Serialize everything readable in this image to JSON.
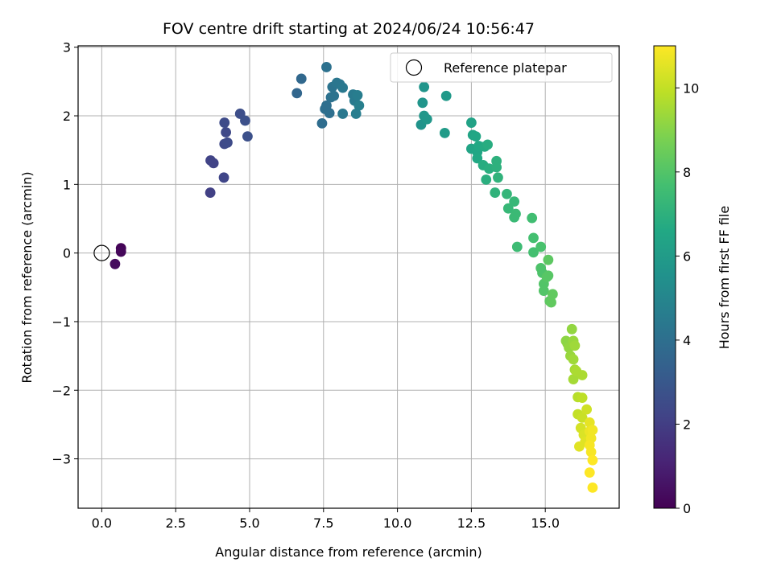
{
  "chart_data": {
    "type": "scatter",
    "title": "FOV centre drift starting at 2024/06/24 10:56:47",
    "xlabel": "Angular distance from reference (arcmin)",
    "ylabel": "Rotation from reference (arcmin)",
    "xlim": [
      -0.8,
      17.5
    ],
    "ylim": [
      -3.72,
      3.02
    ],
    "xticks": [
      "0.0",
      "2.5",
      "5.0",
      "7.5",
      "10.0",
      "12.5",
      "15.0"
    ],
    "xtick_values": [
      0,
      2.5,
      5,
      7.5,
      10,
      12.5,
      15
    ],
    "yticks": [
      "−3",
      "−2",
      "−1",
      "0",
      "1",
      "2",
      "3"
    ],
    "ytick_values": [
      -3,
      -2,
      -1,
      0,
      1,
      2,
      3
    ],
    "grid": true,
    "legend": {
      "position": "top-right",
      "entries": [
        "Reference platepar"
      ]
    },
    "reference_point": {
      "x": 0,
      "y": 0
    },
    "colorbar": {
      "label": "Hours from first FF file",
      "range": [
        0,
        11
      ],
      "ticks": [
        "0",
        "2",
        "4",
        "6",
        "8",
        "10"
      ],
      "tick_values": [
        0,
        2,
        4,
        6,
        8,
        10
      ],
      "colormap": "viridis"
    },
    "points": [
      {
        "x": 0.65,
        "y": 0.07,
        "h": 0.1
      },
      {
        "x": 0.65,
        "y": 0.02,
        "h": 0.2
      },
      {
        "x": 0.45,
        "y": -0.16,
        "h": 0.3
      },
      {
        "x": 3.67,
        "y": 0.88,
        "h": 2.1
      },
      {
        "x": 3.68,
        "y": 1.35,
        "h": 2.2
      },
      {
        "x": 3.78,
        "y": 1.31,
        "h": 2.2
      },
      {
        "x": 4.13,
        "y": 1.1,
        "h": 2.3
      },
      {
        "x": 4.15,
        "y": 1.59,
        "h": 2.4
      },
      {
        "x": 4.2,
        "y": 1.76,
        "h": 2.4
      },
      {
        "x": 4.25,
        "y": 1.61,
        "h": 2.5
      },
      {
        "x": 4.15,
        "y": 1.9,
        "h": 2.5
      },
      {
        "x": 4.68,
        "y": 2.03,
        "h": 2.6
      },
      {
        "x": 4.85,
        "y": 1.93,
        "h": 2.7
      },
      {
        "x": 4.93,
        "y": 1.7,
        "h": 2.7
      },
      {
        "x": 6.6,
        "y": 2.33,
        "h": 3.6
      },
      {
        "x": 6.75,
        "y": 2.54,
        "h": 3.7
      },
      {
        "x": 7.45,
        "y": 1.89,
        "h": 3.9
      },
      {
        "x": 7.55,
        "y": 2.1,
        "h": 4.0
      },
      {
        "x": 7.6,
        "y": 2.15,
        "h": 4.0
      },
      {
        "x": 7.7,
        "y": 2.04,
        "h": 4.0
      },
      {
        "x": 7.6,
        "y": 2.71,
        "h": 4.1
      },
      {
        "x": 7.75,
        "y": 2.27,
        "h": 4.1
      },
      {
        "x": 7.8,
        "y": 2.42,
        "h": 4.2
      },
      {
        "x": 7.85,
        "y": 2.29,
        "h": 4.2
      },
      {
        "x": 7.95,
        "y": 2.48,
        "h": 4.3
      },
      {
        "x": 8.05,
        "y": 2.46,
        "h": 4.3
      },
      {
        "x": 8.15,
        "y": 2.41,
        "h": 4.4
      },
      {
        "x": 8.15,
        "y": 2.03,
        "h": 4.4
      },
      {
        "x": 8.5,
        "y": 2.31,
        "h": 4.5
      },
      {
        "x": 8.55,
        "y": 2.22,
        "h": 4.5
      },
      {
        "x": 8.6,
        "y": 2.03,
        "h": 4.6
      },
      {
        "x": 8.65,
        "y": 2.3,
        "h": 4.6
      },
      {
        "x": 8.7,
        "y": 2.15,
        "h": 4.7
      },
      {
        "x": 10.8,
        "y": 1.87,
        "h": 5.6
      },
      {
        "x": 10.85,
        "y": 2.19,
        "h": 5.7
      },
      {
        "x": 10.9,
        "y": 2.42,
        "h": 5.7
      },
      {
        "x": 10.9,
        "y": 2.0,
        "h": 5.8
      },
      {
        "x": 11.0,
        "y": 1.95,
        "h": 5.8
      },
      {
        "x": 11.65,
        "y": 2.29,
        "h": 5.9
      },
      {
        "x": 11.6,
        "y": 1.75,
        "h": 6.0
      },
      {
        "x": 12.5,
        "y": 1.9,
        "h": 6.3
      },
      {
        "x": 12.5,
        "y": 1.52,
        "h": 6.4
      },
      {
        "x": 12.55,
        "y": 1.72,
        "h": 6.4
      },
      {
        "x": 12.65,
        "y": 1.7,
        "h": 6.5
      },
      {
        "x": 12.7,
        "y": 1.47,
        "h": 6.5
      },
      {
        "x": 12.75,
        "y": 1.56,
        "h": 6.6
      },
      {
        "x": 12.7,
        "y": 1.38,
        "h": 6.6
      },
      {
        "x": 12.95,
        "y": 1.55,
        "h": 6.7
      },
      {
        "x": 12.9,
        "y": 1.28,
        "h": 6.8
      },
      {
        "x": 13.05,
        "y": 1.58,
        "h": 6.8
      },
      {
        "x": 13.0,
        "y": 1.07,
        "h": 6.9
      },
      {
        "x": 13.1,
        "y": 1.23,
        "h": 6.9
      },
      {
        "x": 13.35,
        "y": 1.34,
        "h": 7.0
      },
      {
        "x": 13.35,
        "y": 1.25,
        "h": 7.0
      },
      {
        "x": 13.4,
        "y": 1.1,
        "h": 7.1
      },
      {
        "x": 13.3,
        "y": 0.88,
        "h": 7.1
      },
      {
        "x": 13.7,
        "y": 0.86,
        "h": 7.2
      },
      {
        "x": 13.75,
        "y": 0.65,
        "h": 7.3
      },
      {
        "x": 13.95,
        "y": 0.75,
        "h": 7.3
      },
      {
        "x": 13.95,
        "y": 0.52,
        "h": 7.4
      },
      {
        "x": 14.0,
        "y": 0.57,
        "h": 7.4
      },
      {
        "x": 14.05,
        "y": 0.09,
        "h": 7.5
      },
      {
        "x": 14.55,
        "y": 0.51,
        "h": 7.6
      },
      {
        "x": 14.6,
        "y": 0.22,
        "h": 7.7
      },
      {
        "x": 14.6,
        "y": 0.01,
        "h": 7.7
      },
      {
        "x": 14.85,
        "y": 0.09,
        "h": 7.8
      },
      {
        "x": 14.85,
        "y": -0.22,
        "h": 7.9
      },
      {
        "x": 14.9,
        "y": -0.29,
        "h": 7.9
      },
      {
        "x": 14.95,
        "y": -0.45,
        "h": 8.0
      },
      {
        "x": 14.95,
        "y": -0.55,
        "h": 8.0
      },
      {
        "x": 15.05,
        "y": -0.35,
        "h": 8.1
      },
      {
        "x": 15.1,
        "y": -0.33,
        "h": 8.1
      },
      {
        "x": 15.1,
        "y": -0.1,
        "h": 8.2
      },
      {
        "x": 15.15,
        "y": -0.7,
        "h": 8.2
      },
      {
        "x": 15.2,
        "y": -0.72,
        "h": 8.3
      },
      {
        "x": 15.25,
        "y": -0.6,
        "h": 8.3
      },
      {
        "x": 15.7,
        "y": -1.28,
        "h": 9.1
      },
      {
        "x": 15.75,
        "y": -1.32,
        "h": 9.1
      },
      {
        "x": 15.8,
        "y": -1.38,
        "h": 9.2
      },
      {
        "x": 15.9,
        "y": -1.11,
        "h": 9.2
      },
      {
        "x": 15.85,
        "y": -1.5,
        "h": 9.3
      },
      {
        "x": 15.95,
        "y": -1.28,
        "h": 9.3
      },
      {
        "x": 15.95,
        "y": -1.55,
        "h": 9.4
      },
      {
        "x": 16.0,
        "y": -1.35,
        "h": 9.4
      },
      {
        "x": 16.0,
        "y": -1.7,
        "h": 9.5
      },
      {
        "x": 15.95,
        "y": -1.84,
        "h": 9.5
      },
      {
        "x": 16.25,
        "y": -1.78,
        "h": 9.6
      },
      {
        "x": 16.05,
        "y": -1.72,
        "h": 9.6
      },
      {
        "x": 16.1,
        "y": -2.1,
        "h": 9.8
      },
      {
        "x": 16.25,
        "y": -2.11,
        "h": 9.9
      },
      {
        "x": 16.1,
        "y": -2.35,
        "h": 10.0
      },
      {
        "x": 16.25,
        "y": -2.4,
        "h": 10.1
      },
      {
        "x": 16.4,
        "y": -2.28,
        "h": 10.2
      },
      {
        "x": 16.2,
        "y": -2.55,
        "h": 10.3
      },
      {
        "x": 16.3,
        "y": -2.65,
        "h": 10.4
      },
      {
        "x": 16.35,
        "y": -2.75,
        "h": 10.5
      },
      {
        "x": 16.15,
        "y": -2.82,
        "h": 10.5
      },
      {
        "x": 16.5,
        "y": -2.47,
        "h": 10.6
      },
      {
        "x": 16.5,
        "y": -2.6,
        "h": 10.7
      },
      {
        "x": 16.55,
        "y": -2.7,
        "h": 10.8
      },
      {
        "x": 16.6,
        "y": -2.58,
        "h": 10.8
      },
      {
        "x": 16.5,
        "y": -2.8,
        "h": 10.9
      },
      {
        "x": 16.55,
        "y": -2.9,
        "h": 10.9
      },
      {
        "x": 16.6,
        "y": -3.02,
        "h": 11.0
      },
      {
        "x": 16.5,
        "y": -3.2,
        "h": 11.0
      },
      {
        "x": 16.6,
        "y": -3.42,
        "h": 11.0
      }
    ]
  }
}
